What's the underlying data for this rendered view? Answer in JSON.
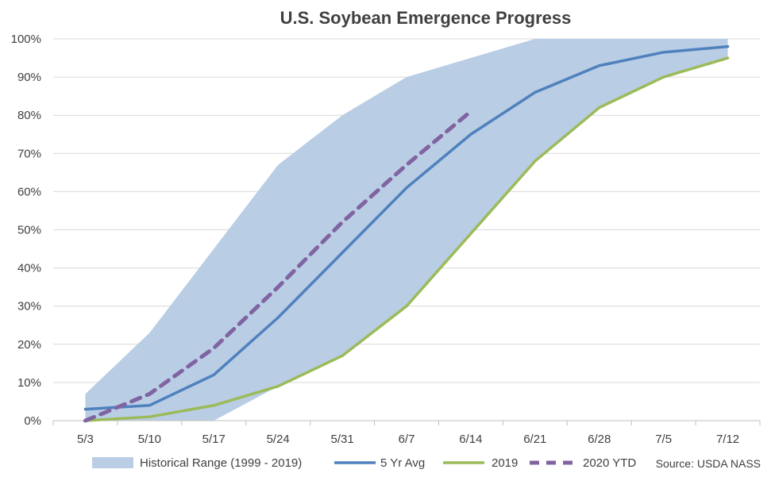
{
  "chart_data": {
    "type": "line",
    "title": "U.S. Soybean Emergence Progress",
    "source": "Source: USDA NASS",
    "categories": [
      "5/3",
      "5/10",
      "5/17",
      "5/24",
      "5/31",
      "6/7",
      "6/14",
      "6/21",
      "6/28",
      "7/5",
      "7/12"
    ],
    "ylim": [
      0,
      100
    ],
    "yticks": [
      "0%",
      "10%",
      "20%",
      "30%",
      "40%",
      "50%",
      "60%",
      "70%",
      "80%",
      "90%",
      "100%"
    ],
    "grid": true,
    "legend_position": "bottom",
    "range": {
      "name": "Historical Range (1999 - 2019)",
      "color": "#b9cde5",
      "upper": [
        7,
        23,
        45,
        67,
        80,
        90,
        95,
        100,
        100,
        100,
        100
      ],
      "lower": [
        0,
        0,
        0,
        9,
        17,
        30,
        49,
        68,
        82,
        90,
        95
      ]
    },
    "series": [
      {
        "name": "5 Yr Avg",
        "color": "#4f81bd",
        "dash": false,
        "values": [
          3,
          4,
          12,
          27,
          44,
          61,
          75,
          86,
          93,
          96.5,
          98
        ]
      },
      {
        "name": "2019",
        "color": "#9bbb59",
        "dash": false,
        "values": [
          0,
          1,
          4,
          9,
          17,
          30,
          49,
          68,
          82,
          90,
          95
        ]
      },
      {
        "name": "2020 YTD",
        "color": "#8064a2",
        "dash": true,
        "values": [
          0,
          7,
          19,
          35,
          52,
          67,
          81,
          null,
          null,
          null,
          null
        ]
      }
    ]
  }
}
